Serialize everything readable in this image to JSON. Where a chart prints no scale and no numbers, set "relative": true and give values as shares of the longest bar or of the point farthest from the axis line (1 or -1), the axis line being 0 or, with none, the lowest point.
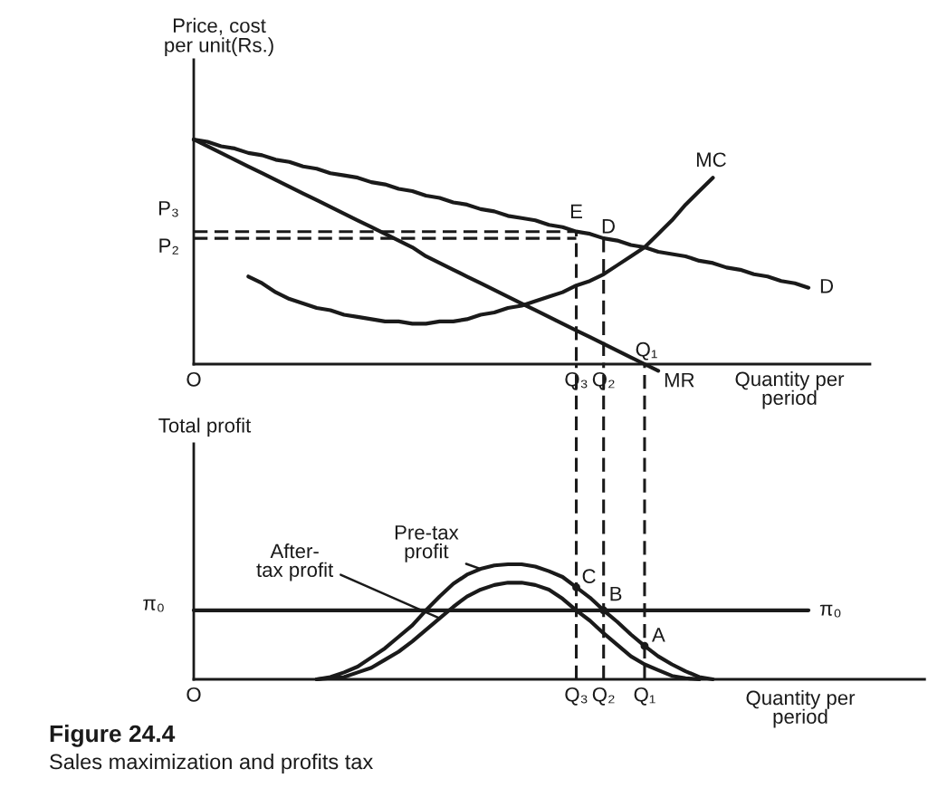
{
  "chart_data": [
    {
      "type": "line",
      "relative": true,
      "ylabel": "Price, cost\nper unit(Rs.)",
      "xlabel": "Quantity per\nperiod",
      "categories": [
        "O",
        null,
        null,
        null,
        null,
        null,
        null,
        null,
        null,
        null,
        null,
        null,
        null,
        null,
        null,
        null,
        null,
        null,
        null,
        null,
        null,
        null,
        null,
        null,
        null,
        null,
        null,
        null,
        "Q₃",
        null,
        "Q₂",
        null,
        null,
        null,
        null,
        null,
        null,
        null,
        null,
        null,
        null,
        null,
        null,
        null,
        null,
        null,
        null,
        null,
        null,
        null
      ],
      "series": [
        {
          "name": "D",
          "color": "#1a1a1a",
          "values": [
            1.0,
            0.99,
            0.97,
            0.96,
            0.94,
            0.93,
            0.91,
            0.9,
            0.88,
            0.87,
            0.85,
            0.84,
            0.83,
            0.81,
            0.8,
            0.78,
            0.77,
            0.75,
            0.74,
            0.72,
            0.71,
            0.69,
            0.68,
            0.66,
            0.65,
            0.64,
            0.62,
            0.61,
            0.59,
            0.58,
            0.56,
            0.55,
            0.53,
            0.52,
            0.5,
            0.49,
            0.48,
            0.46,
            0.45,
            0.43,
            0.42,
            0.4,
            0.39,
            0.37,
            0.36,
            0.34,
            null,
            null,
            null,
            null
          ]
        },
        {
          "name": "MR",
          "color": "#1a1a1a",
          "values": [
            1.0,
            0.97,
            0.94,
            0.91,
            0.88,
            0.85,
            0.82,
            0.79,
            0.76,
            0.73,
            0.7,
            0.67,
            0.64,
            0.61,
            0.58,
            0.55,
            0.52,
            0.48,
            0.45,
            0.42,
            0.39,
            0.36,
            0.33,
            0.3,
            0.27,
            0.24,
            0.21,
            0.18,
            0.15,
            0.12,
            0.09,
            0.06,
            0.03,
            0.0,
            -0.03,
            null,
            null,
            null,
            null,
            null,
            null,
            null,
            null,
            null,
            null,
            null,
            null,
            null,
            null,
            null
          ]
        },
        {
          "name": "MC",
          "color": "#1a1a1a",
          "values": [
            null,
            null,
            null,
            null,
            0.39,
            0.36,
            0.32,
            0.29,
            0.27,
            0.25,
            0.24,
            0.22,
            0.21,
            0.2,
            0.19,
            0.19,
            0.18,
            0.18,
            0.19,
            0.19,
            0.2,
            0.22,
            0.23,
            0.25,
            0.26,
            0.28,
            0.3,
            0.32,
            0.35,
            0.37,
            0.4,
            0.44,
            0.48,
            0.52,
            0.58,
            0.64,
            0.71,
            0.77,
            0.83,
            null,
            null,
            null,
            null,
            null,
            null,
            null,
            null,
            null,
            null,
            null
          ]
        },
        {
          "name": "P₃",
          "color": "#1a1a1a",
          "line_style": "dashed",
          "x": [
            "O",
            "Q₃",
            "Q₃"
          ],
          "values": [
            0.59,
            0.59,
            0.0
          ]
        },
        {
          "name": "P₂",
          "color": "#1a1a1a",
          "line_style": "dashed",
          "x": [
            "O",
            "Q₃"
          ],
          "values": [
            0.56,
            0.56
          ]
        },
        {
          "color": "#1a1a1a",
          "line_style": "dashed",
          "x": [
            "Q₂",
            "Q₂"
          ],
          "values": [
            0.56,
            0.0
          ]
        }
      ],
      "annotations": [
        {
          "text": "E",
          "x": "Q₃",
          "y": 0.59
        },
        "D",
        "Q₁"
      ]
    },
    {
      "type": "line",
      "relative": true,
      "ylabel": "Total profit",
      "xlabel": "Quantity per\nperiod",
      "categories": [
        "O",
        null,
        null,
        null,
        null,
        null,
        null,
        null,
        null,
        null,
        null,
        null,
        null,
        null,
        null,
        null,
        null,
        null,
        null,
        null,
        null,
        null,
        null,
        null,
        null,
        null,
        null,
        null,
        "Q₃",
        null,
        "Q₂",
        null,
        null,
        "Q₁",
        null,
        null,
        null,
        null,
        null,
        null,
        null,
        null,
        null,
        null,
        null,
        null,
        null,
        null,
        null,
        null,
        null,
        null,
        null,
        null
      ],
      "series": [
        {
          "name": "Pre-tax\nprofit",
          "color": "#1a1a1a",
          "values": [
            null,
            null,
            null,
            null,
            null,
            null,
            null,
            null,
            null,
            0.0,
            0.02,
            0.06,
            0.11,
            0.19,
            0.27,
            0.37,
            0.47,
            0.6,
            0.72,
            0.83,
            0.91,
            0.96,
            0.99,
            1.0,
            1.0,
            0.98,
            0.94,
            0.89,
            0.8,
            0.71,
            0.6,
            0.5,
            0.39,
            0.29,
            0.2,
            0.13,
            0.07,
            0.02,
            0.0,
            null,
            null,
            null,
            null,
            null,
            null,
            null,
            null,
            null,
            null,
            null,
            null,
            null,
            null,
            null
          ]
        },
        {
          "name": "After-\ntax profit",
          "color": "#1a1a1a",
          "values": [
            null,
            null,
            null,
            null,
            null,
            null,
            null,
            null,
            null,
            0.0,
            0.01,
            0.02,
            0.06,
            0.1,
            0.17,
            0.24,
            0.33,
            0.43,
            0.53,
            0.63,
            0.72,
            0.78,
            0.82,
            0.84,
            0.84,
            0.82,
            0.78,
            0.7,
            0.6,
            0.51,
            0.4,
            0.3,
            0.2,
            0.13,
            0.08,
            0.03,
            0.01,
            0.0,
            null,
            null,
            null,
            null,
            null,
            null,
            null,
            null,
            null,
            null,
            null,
            null,
            null,
            null,
            null,
            null
          ]
        },
        {
          "name": "π₀",
          "color": "#1a1a1a",
          "values": [
            0.6,
            0.6,
            0.6,
            0.6,
            0.6,
            0.6,
            0.6,
            0.6,
            0.6,
            0.6,
            0.6,
            0.6,
            0.6,
            0.6,
            0.6,
            0.6,
            0.6,
            0.6,
            0.6,
            0.6,
            0.6,
            0.6,
            0.6,
            0.6,
            0.6,
            0.6,
            0.6,
            0.6,
            0.6,
            0.6,
            0.6,
            0.6,
            0.6,
            0.6,
            0.6,
            0.6,
            0.6,
            0.6,
            0.6,
            0.6,
            0.6,
            0.6,
            0.6,
            0.6,
            0.6,
            0.6,
            null,
            null,
            null,
            null,
            null,
            null,
            null,
            null
          ]
        },
        {
          "type": "scatter",
          "color": "#1a1a1a",
          "marker": "circle",
          "values": [
            null,
            null,
            null,
            null,
            null,
            null,
            null,
            null,
            null,
            null,
            null,
            null,
            null,
            null,
            null,
            null,
            null,
            null,
            null,
            null,
            null,
            null,
            null,
            null,
            null,
            null,
            null,
            null,
            0.8,
            null,
            0.6,
            null,
            null,
            0.29,
            null,
            null,
            null,
            null,
            null,
            null,
            null,
            null,
            null,
            null,
            null,
            null,
            null,
            null,
            null,
            null,
            null,
            null,
            null,
            null
          ]
        }
      ],
      "ref_lines": [
        {
          "axis": "x",
          "value": "Q₃",
          "line_style": "dashed",
          "color": "#1a1a1a"
        },
        {
          "axis": "x",
          "value": "Q₂",
          "line_style": "dashed",
          "color": "#1a1a1a"
        },
        {
          "axis": "x",
          "value": "Q₁",
          "line_style": "dashed",
          "color": "#1a1a1a"
        }
      ],
      "annotations": [
        {
          "text": "π₀",
          "x": "O",
          "y": 0.6
        },
        {
          "text": "C",
          "x": "Q₃",
          "y": 0.8
        },
        {
          "text": "B",
          "x": "Q₂",
          "y": 0.6
        },
        {
          "text": "A",
          "x": "Q₁",
          "y": 0.29
        },
        "Figure 24.4",
        "Sales maximization and profits tax"
      ]
    }
  ]
}
